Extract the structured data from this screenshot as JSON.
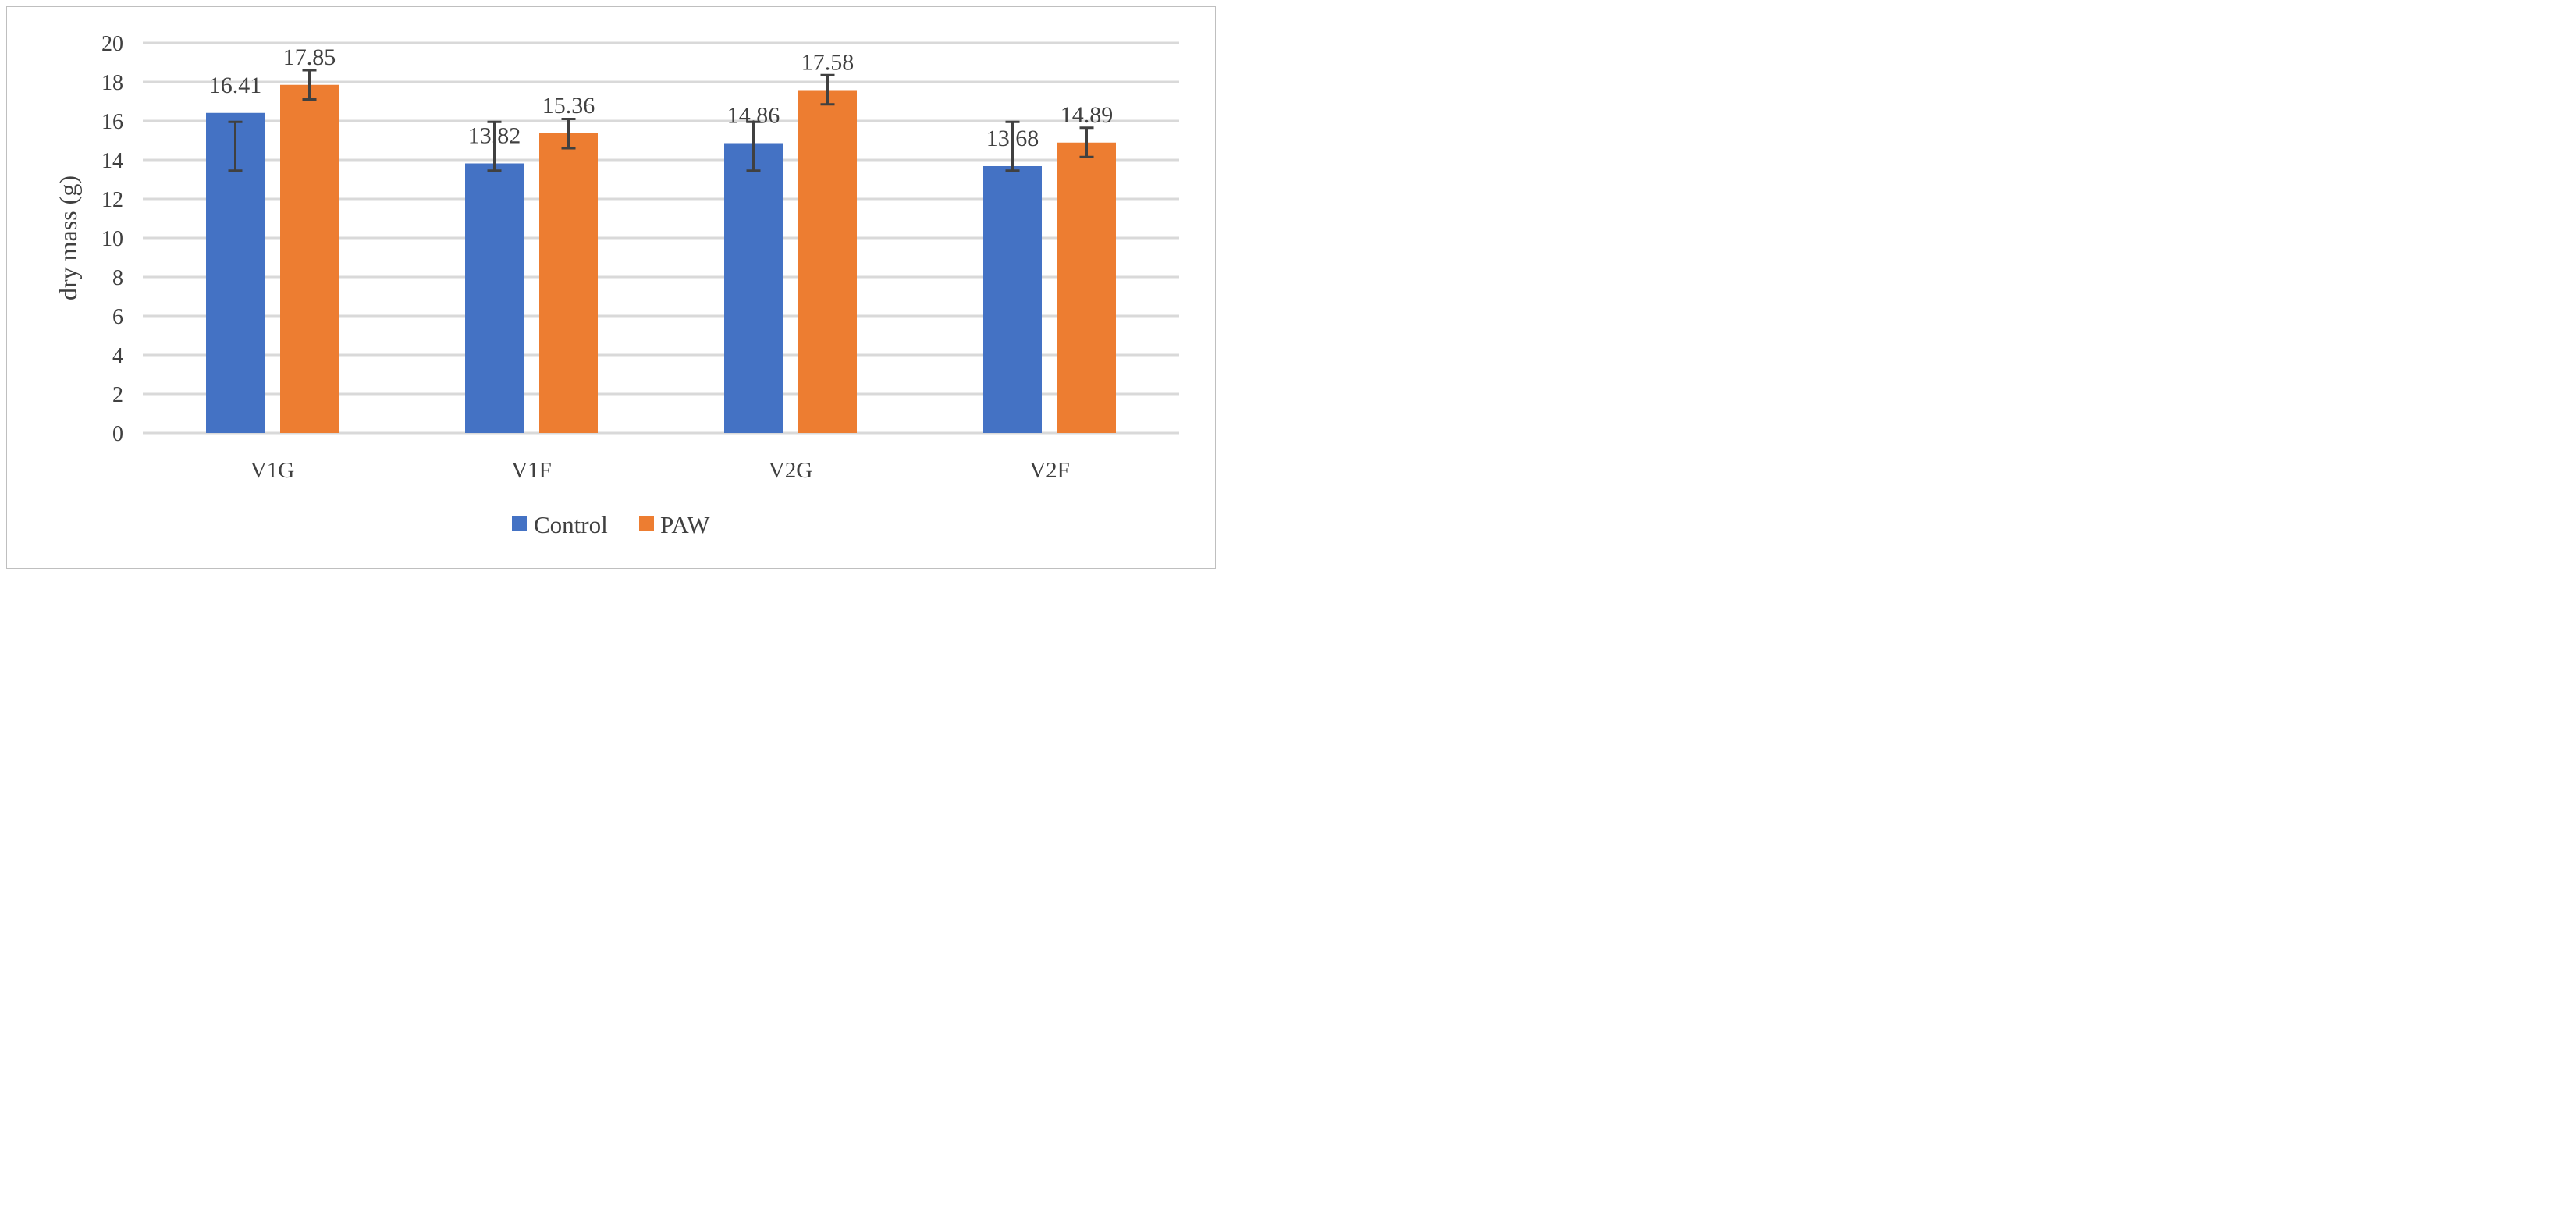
{
  "chart_data": {
    "type": "bar",
    "title": "",
    "xlabel": "",
    "ylabel": "dry mass (g)",
    "ylim": [
      0,
      20
    ],
    "yticks": [
      0,
      2,
      4,
      6,
      8,
      10,
      12,
      14,
      16,
      18,
      20
    ],
    "grid": true,
    "legend_position": "bottom-center",
    "categories": [
      "V1G",
      "V1F",
      "V2G",
      "V2F"
    ],
    "series": [
      {
        "name": "Control",
        "color": "#4472c4",
        "values": [
          16.41,
          13.82,
          14.86,
          13.68
        ],
        "labels": [
          "16.41",
          "13.82",
          "14.86",
          "13.68"
        ],
        "error_low": [
          13.45,
          13.45,
          13.45,
          13.45
        ],
        "error_high": [
          15.95,
          15.95,
          15.95,
          15.95
        ]
      },
      {
        "name": "PAW",
        "color": "#ed7d31",
        "values": [
          17.85,
          15.36,
          17.58,
          14.89
        ],
        "labels": [
          "17.85",
          "15.36",
          "17.58",
          "14.89"
        ],
        "error_low": [
          17.1,
          14.6,
          16.85,
          14.15
        ],
        "error_high": [
          18.6,
          16.1,
          18.35,
          15.65
        ]
      }
    ]
  }
}
